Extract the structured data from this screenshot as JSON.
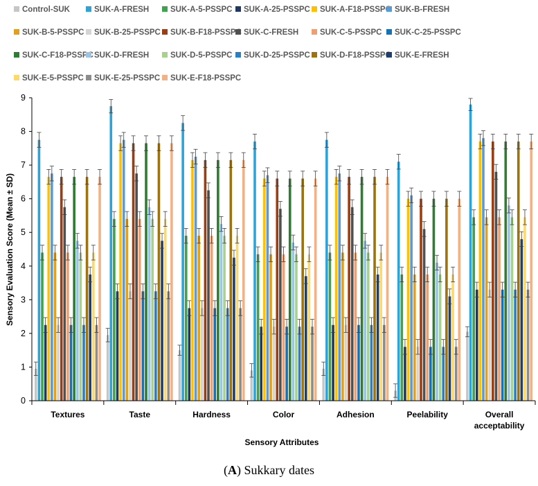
{
  "caption": {
    "label": "A",
    "open": "(",
    "close": ")",
    "text": " Sukkary dates"
  },
  "chart_data": {
    "type": "bar",
    "title": "",
    "xlabel": "Sensory Attributes",
    "ylabel": "Sensory Evaluation Score (Mean ± SD)",
    "ylim": [
      0,
      9
    ],
    "yticks": [
      0,
      1,
      2,
      3,
      4,
      5,
      6,
      7,
      8,
      9
    ],
    "grid": false,
    "legend_position": "top",
    "categories": [
      "Textures",
      "Taste",
      "Hardness",
      "Color",
      "Adhesion",
      "Peelability",
      "Overall acceptability"
    ],
    "series": [
      {
        "name": "Control-SUK",
        "color": "#c6c6c6",
        "values": [
          0.95,
          1.95,
          1.5,
          0.9,
          0.95,
          0.3,
          2.05
        ],
        "errors": [
          0.2,
          0.2,
          0.15,
          0.2,
          0.2,
          0.2,
          0.15
        ]
      },
      {
        "name": "SUK-A-FRESH",
        "color": "#2ea3d8",
        "values": [
          7.75,
          8.75,
          8.25,
          7.7,
          7.75,
          7.1,
          8.8
        ],
        "errors": [
          0.22,
          0.2,
          0.22,
          0.22,
          0.22,
          0.22,
          0.18
        ]
      },
      {
        "name": "SUK-A-5-PSSPC",
        "color": "#3fa34d",
        "values": [
          4.4,
          5.4,
          4.9,
          4.35,
          4.4,
          3.75,
          5.45
        ],
        "errors": [
          0.22,
          0.22,
          0.22,
          0.22,
          0.22,
          0.22,
          0.22
        ]
      },
      {
        "name": "SUK-A-25-PSSPC",
        "color": "#203864",
        "values": [
          2.25,
          3.25,
          2.75,
          2.2,
          2.25,
          1.6,
          3.3
        ],
        "errors": [
          0.22,
          0.22,
          0.22,
          0.22,
          0.22,
          0.22,
          0.22
        ]
      },
      {
        "name": "SUK-A-F18-PSSPC",
        "color": "#ffc000",
        "values": [
          6.65,
          7.65,
          7.15,
          6.6,
          6.65,
          6.0,
          7.7
        ],
        "errors": [
          0.22,
          0.22,
          0.22,
          0.22,
          0.22,
          0.22,
          0.22
        ]
      },
      {
        "name": "SUK-B-FRESH",
        "color": "#5b9bd5",
        "values": [
          6.75,
          7.75,
          7.25,
          6.7,
          6.75,
          6.1,
          7.8
        ],
        "errors": [
          0.22,
          0.22,
          0.22,
          0.22,
          0.22,
          0.22,
          0.22
        ]
      },
      {
        "name": "SUK-B-5-PSSPC",
        "color": "#e3a01a",
        "values": [
          4.4,
          5.4,
          4.9,
          4.35,
          4.4,
          3.75,
          5.45
        ],
        "errors": [
          0.22,
          0.22,
          0.22,
          0.22,
          0.22,
          0.22,
          0.22
        ]
      },
      {
        "name": "SUK-B-25-PSSPC",
        "color": "#d4d4d4",
        "values": [
          2.25,
          3.25,
          2.75,
          2.2,
          2.25,
          1.6,
          3.3
        ],
        "errors": [
          0.22,
          0.22,
          0.22,
          0.22,
          0.22,
          0.22,
          0.22
        ]
      },
      {
        "name": "SUK-B-F18-PSSPC",
        "color": "#9c3e12",
        "values": [
          6.65,
          7.65,
          7.15,
          6.6,
          6.65,
          6.0,
          7.7
        ],
        "errors": [
          0.22,
          0.22,
          0.22,
          0.22,
          0.22,
          0.22,
          0.22
        ]
      },
      {
        "name": "SUK-C-FRESH",
        "color": "#505050",
        "values": [
          5.75,
          6.75,
          6.25,
          5.7,
          5.75,
          5.1,
          6.8
        ],
        "errors": [
          0.22,
          0.22,
          0.22,
          0.22,
          0.22,
          0.22,
          0.22
        ]
      },
      {
        "name": "SUK-C-5-PSSPC",
        "color": "#f0a070",
        "values": [
          4.4,
          5.4,
          4.9,
          4.35,
          4.4,
          3.75,
          5.45
        ],
        "errors": [
          0.22,
          0.22,
          0.22,
          0.22,
          0.22,
          0.22,
          0.22
        ]
      },
      {
        "name": "SUK-C-25-PSSPC",
        "color": "#1572b6",
        "values": [
          2.25,
          3.25,
          2.75,
          2.2,
          2.25,
          1.6,
          3.3
        ],
        "errors": [
          0.22,
          0.22,
          0.22,
          0.22,
          0.22,
          0.22,
          0.22
        ]
      },
      {
        "name": "SUK-C-F18-PSSPC",
        "color": "#2e7d32",
        "values": [
          6.65,
          7.65,
          7.15,
          6.6,
          6.65,
          6.0,
          7.7
        ],
        "errors": [
          0.22,
          0.22,
          0.22,
          0.22,
          0.22,
          0.22,
          0.22
        ]
      },
      {
        "name": "SUK-D-FRESH",
        "color": "#9dc3e6",
        "values": [
          4.75,
          5.75,
          5.25,
          4.7,
          4.75,
          4.1,
          5.8
        ],
        "errors": [
          0.22,
          0.22,
          0.22,
          0.22,
          0.22,
          0.22,
          0.22
        ]
      },
      {
        "name": "SUK-D-5-PSSPC",
        "color": "#a9d18e",
        "values": [
          4.4,
          5.4,
          4.9,
          4.35,
          4.4,
          3.75,
          5.45
        ],
        "errors": [
          0.22,
          0.22,
          0.22,
          0.22,
          0.22,
          0.22,
          0.22
        ]
      },
      {
        "name": "SUK-D-25-PSSPC",
        "color": "#2a7fc9",
        "values": [
          2.25,
          3.25,
          2.75,
          2.2,
          2.25,
          1.6,
          3.3
        ],
        "errors": [
          0.22,
          0.22,
          0.22,
          0.22,
          0.22,
          0.22,
          0.22
        ]
      },
      {
        "name": "SUK-D-F18-PSSPC",
        "color": "#9c7310",
        "values": [
          6.65,
          7.65,
          7.15,
          6.6,
          6.65,
          6.0,
          7.7
        ],
        "errors": [
          0.22,
          0.22,
          0.22,
          0.22,
          0.22,
          0.22,
          0.22
        ]
      },
      {
        "name": "SUK-E-FRESH",
        "color": "#1f3f6e",
        "values": [
          3.75,
          4.75,
          4.25,
          3.7,
          3.75,
          3.1,
          4.8
        ],
        "errors": [
          0.22,
          0.22,
          0.22,
          0.22,
          0.22,
          0.22,
          0.22
        ]
      },
      {
        "name": "SUK-E-5-PSSPC",
        "color": "#ffd966",
        "values": [
          4.4,
          5.4,
          4.9,
          4.35,
          4.4,
          3.75,
          5.45
        ],
        "errors": [
          0.22,
          0.22,
          0.22,
          0.22,
          0.22,
          0.22,
          0.22
        ]
      },
      {
        "name": "SUK-E-25-PSSPC",
        "color": "#8c8c8c",
        "values": [
          2.25,
          3.25,
          2.75,
          2.2,
          2.25,
          1.6,
          3.3
        ],
        "errors": [
          0.22,
          0.22,
          0.22,
          0.22,
          0.22,
          0.22,
          0.22
        ]
      },
      {
        "name": "SUK-E-F18-PSSPC",
        "color": "#f4b183",
        "values": [
          6.65,
          7.65,
          7.15,
          6.6,
          6.65,
          6.0,
          7.7
        ],
        "errors": [
          0.22,
          0.22,
          0.22,
          0.22,
          0.22,
          0.22,
          0.22
        ]
      }
    ]
  }
}
